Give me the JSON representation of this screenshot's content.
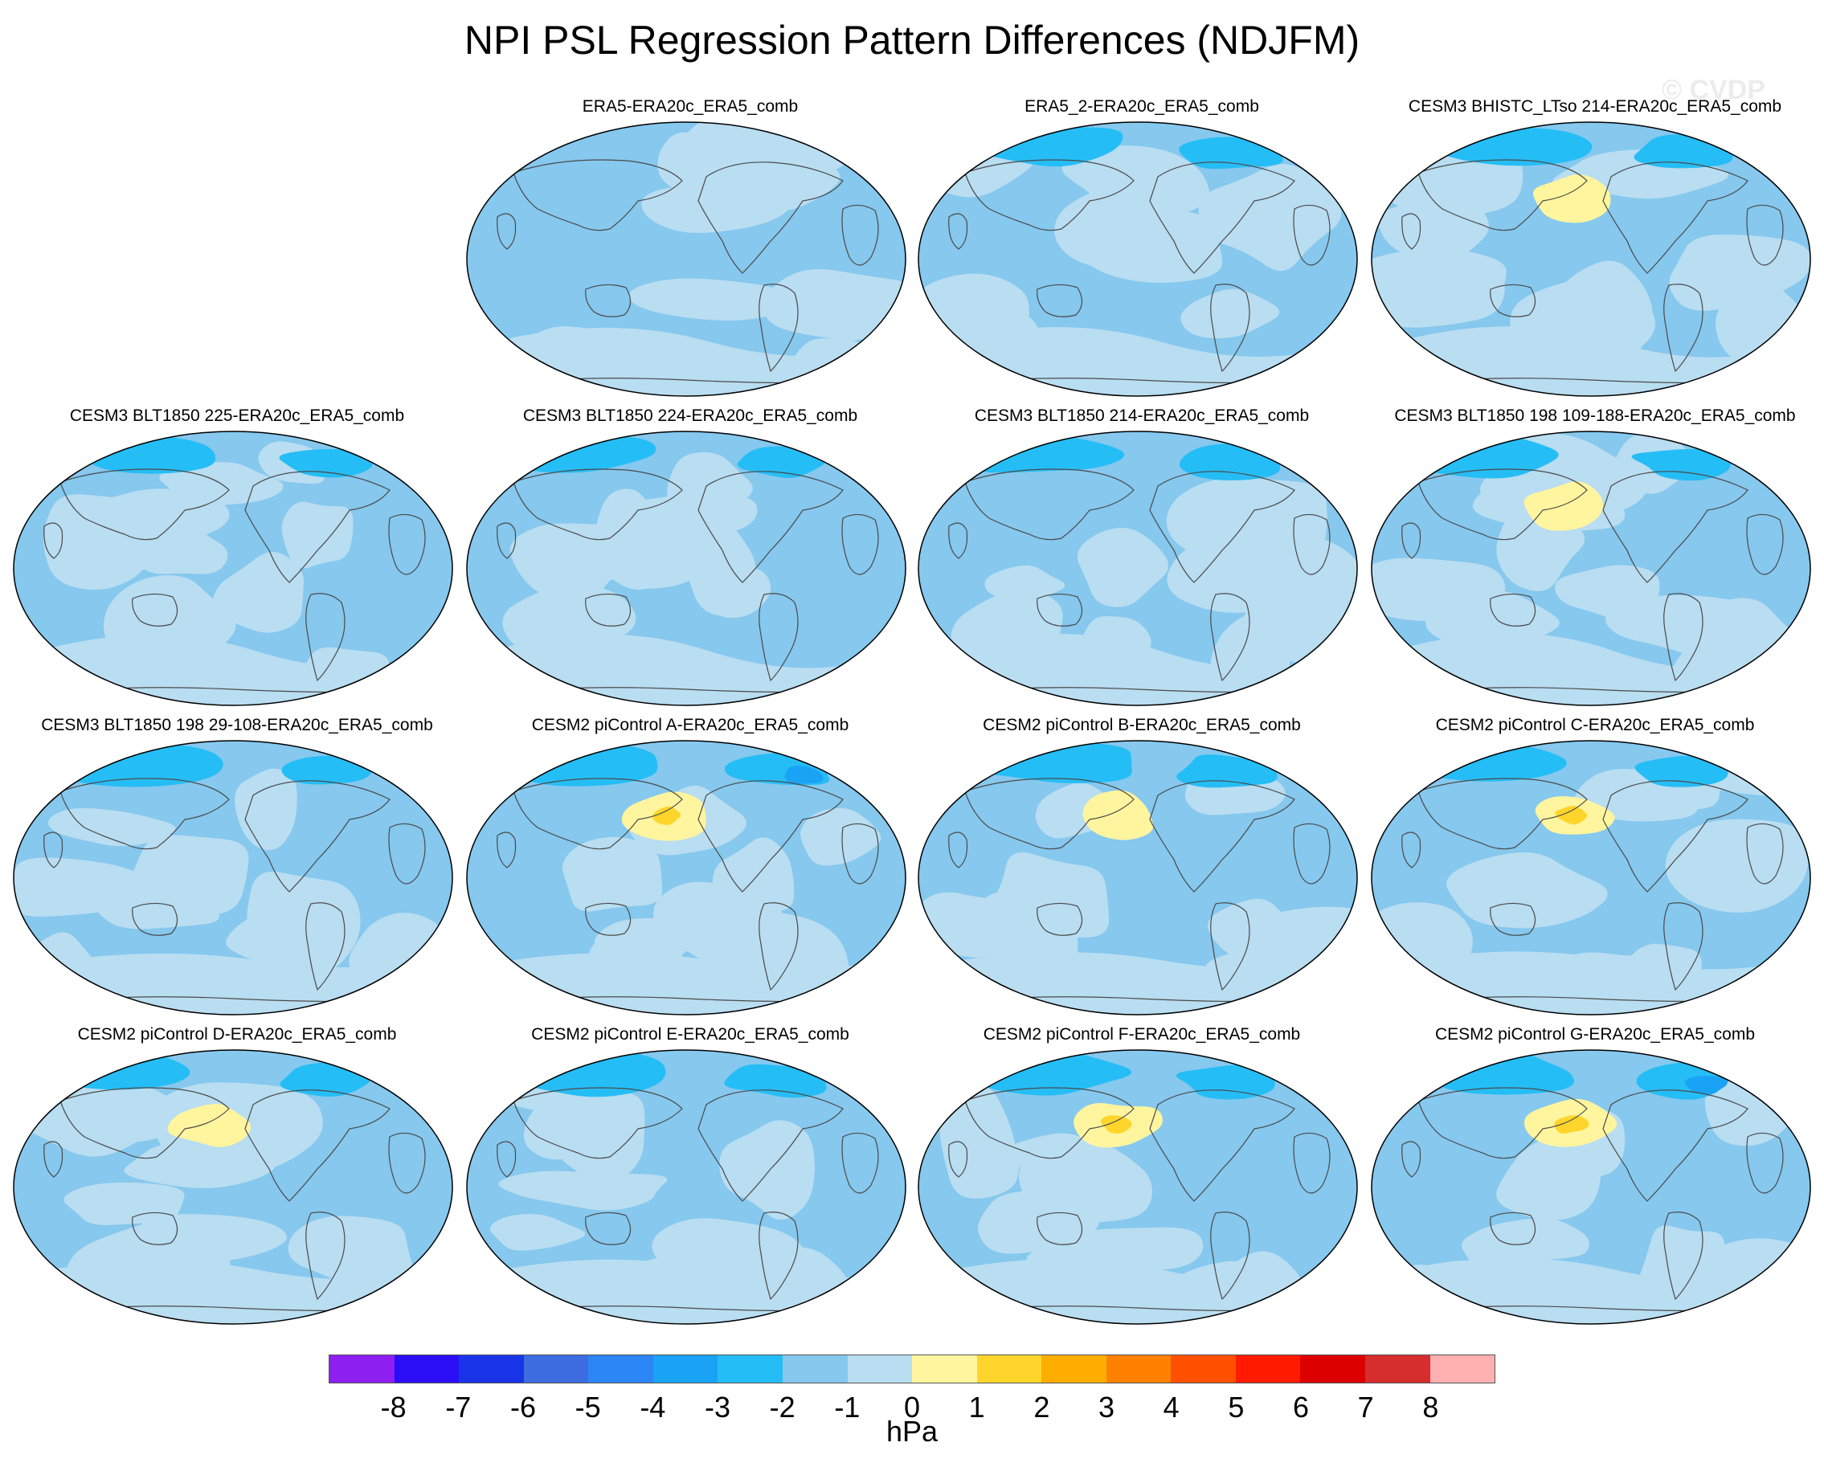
{
  "title": "NPI PSL Regression Pattern Differences (NDJFM)",
  "watermark": "© CVDP",
  "chart_data": {
    "type": "heatmap",
    "projection": "Robinson (Pacific-centered global maps)",
    "season": "NDJFM",
    "units": "hPa",
    "contour_levels": [
      -8,
      -7,
      -6,
      -5,
      -4,
      -3,
      -2,
      -1,
      0,
      1,
      2,
      3,
      4,
      5,
      6,
      7,
      8
    ],
    "colorbar_colors": [
      "#8d1ff0",
      "#2b0ef5",
      "#1a35e8",
      "#3d6de0",
      "#2c86f5",
      "#1aa3f5",
      "#25bdf5",
      "#86c8ee",
      "#b9ddf1",
      "#fff59e",
      "#ffd52b",
      "#ffae00",
      "#ff8100",
      "#ff5000",
      "#ff1a00",
      "#dd0000",
      "#d62d2d",
      "#ffb0b0"
    ],
    "panels": [
      {
        "label": "ERA5-ERA20c_ERA5_comb",
        "max_positive": 1,
        "min_negative": -1
      },
      {
        "label": "ERA5_2-ERA20c_ERA5_comb",
        "max_positive": 1,
        "min_negative": -2
      },
      {
        "label": "CESM3 BHISTC_LTso 214-ERA20c_ERA5_comb",
        "max_positive": 2,
        "min_negative": -2
      },
      {
        "label": "CESM3 BLT1850 225-ERA20c_ERA5_comb",
        "max_positive": 1,
        "min_negative": -2
      },
      {
        "label": "CESM3 BLT1850 224-ERA20c_ERA5_comb",
        "max_positive": 1,
        "min_negative": -2
      },
      {
        "label": "CESM3 BLT1850 214-ERA20c_ERA5_comb",
        "max_positive": 1,
        "min_negative": -2
      },
      {
        "label": "CESM3 BLT1850 198 109-188-ERA20c_ERA5_comb",
        "max_positive": 2,
        "min_negative": -2
      },
      {
        "label": "CESM3 BLT1850 198 29-108-ERA20c_ERA5_comb",
        "max_positive": 1,
        "min_negative": -2
      },
      {
        "label": "CESM2 piControl A-ERA20c_ERA5_comb",
        "max_positive": 3,
        "min_negative": -3
      },
      {
        "label": "CESM2 piControl B-ERA20c_ERA5_comb",
        "max_positive": 2,
        "min_negative": -2
      },
      {
        "label": "CESM2 piControl C-ERA20c_ERA5_comb",
        "max_positive": 3,
        "min_negative": -2
      },
      {
        "label": "CESM2 piControl D-ERA20c_ERA5_comb",
        "max_positive": 2,
        "min_negative": -2
      },
      {
        "label": "CESM2 piControl E-ERA20c_ERA5_comb",
        "max_positive": 1,
        "min_negative": -2
      },
      {
        "label": "CESM2 piControl F-ERA20c_ERA5_comb",
        "max_positive": 3,
        "min_negative": -2
      },
      {
        "label": "CESM2 piControl G-ERA20c_ERA5_comb",
        "max_positive": 3,
        "min_negative": -3
      }
    ]
  }
}
